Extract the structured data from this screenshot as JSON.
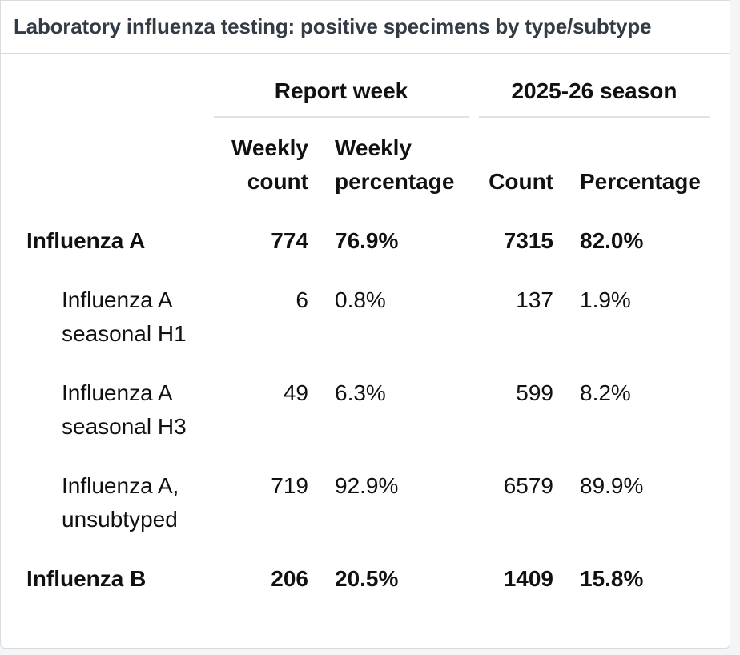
{
  "title": "Laboratory influenza testing: positive specimens by type/subtype",
  "group_headers": {
    "report_week": "Report week",
    "season": "2025-26 season"
  },
  "columns": {
    "weekly_count": [
      "Weekly",
      "count"
    ],
    "weekly_percentage": [
      "Weekly",
      "percentage"
    ],
    "count": "Count",
    "percentage": "Percentage"
  },
  "rows": [
    {
      "label": [
        "Influenza A"
      ],
      "bold": true,
      "weekly_count": "774",
      "weekly_pct": "76.9%",
      "season_count": "7315",
      "season_pct": "82.0%"
    },
    {
      "label": [
        "Influenza A",
        "seasonal H1"
      ],
      "bold": false,
      "weekly_count": "6",
      "weekly_pct": "0.8%",
      "season_count": "137",
      "season_pct": "1.9%"
    },
    {
      "label": [
        "Influenza A",
        "seasonal H3"
      ],
      "bold": false,
      "weekly_count": "49",
      "weekly_pct": "6.3%",
      "season_count": "599",
      "season_pct": "8.2%"
    },
    {
      "label": [
        "Influenza A,",
        "unsubtyped"
      ],
      "bold": false,
      "weekly_count": "719",
      "weekly_pct": "92.9%",
      "season_count": "6579",
      "season_pct": "89.9%"
    },
    {
      "label": [
        "Influenza B"
      ],
      "bold": true,
      "weekly_count": "206",
      "weekly_pct": "20.5%",
      "season_count": "1409",
      "season_pct": "15.8%"
    }
  ]
}
